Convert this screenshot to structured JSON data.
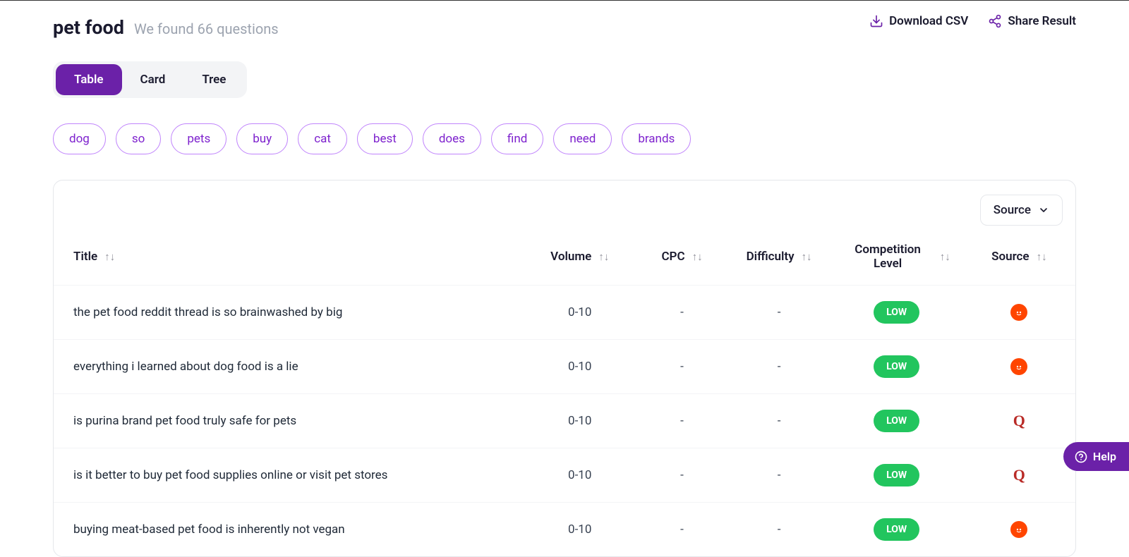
{
  "search_term": "pet food",
  "subtitle": "We found 66 questions",
  "actions": {
    "download": "Download CSV",
    "share": "Share Result"
  },
  "view_tabs": [
    {
      "label": "Table",
      "active": true
    },
    {
      "label": "Card",
      "active": false
    },
    {
      "label": "Tree",
      "active": false
    }
  ],
  "filter_chips": [
    "dog",
    "so",
    "pets",
    "buy",
    "cat",
    "best",
    "does",
    "find",
    "need",
    "brands"
  ],
  "source_dropdown": {
    "label": "Source"
  },
  "columns": [
    {
      "label": "Title",
      "sortable": true
    },
    {
      "label": "Volume",
      "sortable": true
    },
    {
      "label": "CPC",
      "sortable": true
    },
    {
      "label": "Difficulty",
      "sortable": true
    },
    {
      "label": "Competition Level",
      "sortable": true
    },
    {
      "label": "Source",
      "sortable": true
    }
  ],
  "rows": [
    {
      "title": "the pet food reddit thread is so brainwashed by big",
      "volume": "0-10",
      "cpc": "-",
      "difficulty": "-",
      "competition": "LOW",
      "source": "reddit"
    },
    {
      "title": "everything i learned about dog food is a lie",
      "volume": "0-10",
      "cpc": "-",
      "difficulty": "-",
      "competition": "LOW",
      "source": "reddit"
    },
    {
      "title": "is purina brand pet food truly safe for pets",
      "volume": "0-10",
      "cpc": "-",
      "difficulty": "-",
      "competition": "LOW",
      "source": "quora"
    },
    {
      "title": "is it better to buy pet food supplies online or visit pet stores",
      "volume": "0-10",
      "cpc": "-",
      "difficulty": "-",
      "competition": "LOW",
      "source": "quora"
    },
    {
      "title": "buying meat-based pet food is inherently not vegan",
      "volume": "0-10",
      "cpc": "-",
      "difficulty": "-",
      "competition": "LOW",
      "source": "reddit"
    }
  ],
  "styling": {
    "colors": {
      "accent": "#6b21a8",
      "chip_border": "#c084fc",
      "chip_text": "#7e22ce",
      "badge_low_bg": "#22c55e",
      "reddit_bg": "#ff4500",
      "quora_bg": "#b92b27",
      "text_primary": "#1a1a2e",
      "text_muted": "#9ca3af",
      "border": "#e5e7eb",
      "row_border": "#f3f4f6"
    },
    "source_badges": {
      "reddit": {
        "bg": "#ff4500",
        "glyph": "reddit"
      },
      "quora": {
        "bg": "#ffffff",
        "glyph": "Q",
        "text_color": "#b92b27"
      }
    }
  },
  "help_label": "Help"
}
